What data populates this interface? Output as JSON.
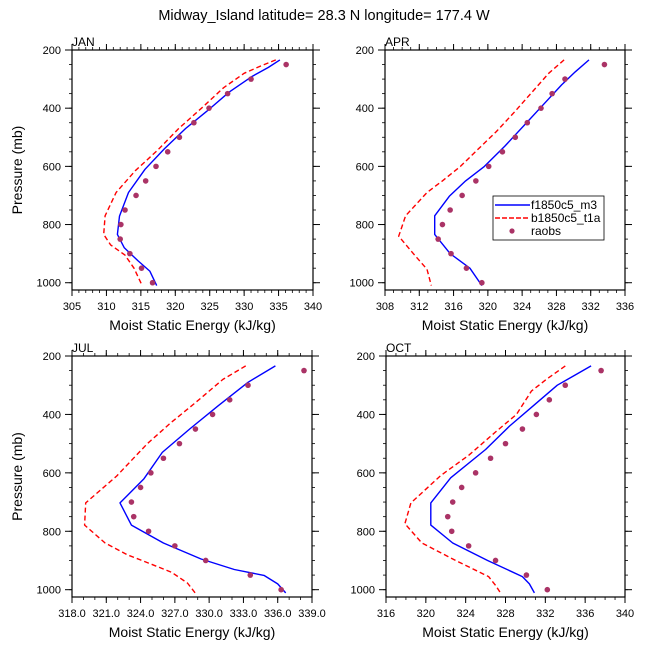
{
  "title": "Midway_Island  latitude= 28.3 N longitude= 177.4 W",
  "chart_data": [
    {
      "type": "line",
      "panel": "JAN",
      "xlabel": "Moist Static Energy (kJ/kg)",
      "ylabel": "Pressure (mb)",
      "xlim": [
        305,
        340
      ],
      "ylim": [
        200,
        1025
      ],
      "y_inverted": false,
      "xticks": [
        305,
        310,
        315,
        320,
        325,
        330,
        335,
        340
      ],
      "xtick_labels": [
        "305",
        "310",
        "315",
        "320",
        "325",
        "330",
        "335",
        "340"
      ],
      "x_minor_step": 1,
      "yticks": [
        200,
        400,
        600,
        800,
        1000
      ],
      "ytick_labels": [
        "200",
        "400",
        "600",
        "800",
        "1000"
      ],
      "y_minor_step": 50,
      "show_xlabel": true,
      "show_ylabel": true,
      "legend": false,
      "series": [
        {
          "name": "f1850c5_m3",
          "style": "solid",
          "color": "#0000ff",
          "x": [
            335.2,
            333.5,
            331.2,
            327.8,
            324.6,
            321.5,
            318.4,
            315.6,
            313.2,
            311.9,
            311.6,
            312.6,
            314.6,
            316.3,
            317.3
          ],
          "y": [
            234,
            260,
            290,
            345,
            410,
            470,
            540,
            610,
            690,
            771,
            834,
            880,
            925,
            960,
            1010
          ]
        },
        {
          "name": "b1850c5_t1a",
          "style": "dashed",
          "color": "#ff0000",
          "x": [
            334.6,
            332.4,
            330.0,
            327.0,
            323.8,
            320.5,
            317.4,
            314.2,
            311.4,
            309.8,
            309.6,
            310.6,
            312.7,
            314.0,
            315.1
          ],
          "y": [
            234,
            255,
            280,
            330,
            400,
            470,
            545,
            615,
            690,
            770,
            834,
            870,
            905,
            950,
            1005
          ]
        },
        {
          "name": "raobs",
          "style": "markers",
          "color": "#aa3366",
          "x": [
            336.1,
            331.0,
            327.6,
            324.9,
            322.7,
            320.6,
            318.9,
            317.2,
            315.7,
            314.3,
            312.7,
            312.1,
            312.0,
            313.4,
            315.1,
            316.7
          ],
          "y": [
            250,
            300,
            350,
            400,
            450,
            500,
            550,
            600,
            650,
            700,
            750,
            800,
            850,
            900,
            950,
            1000
          ]
        }
      ]
    },
    {
      "type": "line",
      "panel": "APR",
      "xlabel": "Moist Static Energy (kJ/kg)",
      "ylabel": "",
      "xlim": [
        308,
        336
      ],
      "ylim": [
        200,
        1025
      ],
      "xticks": [
        308,
        312,
        316,
        320,
        324,
        328,
        332,
        336
      ],
      "xtick_labels": [
        "308",
        "312",
        "316",
        "320",
        "324",
        "328",
        "332",
        "336"
      ],
      "x_minor_step": 1,
      "yticks": [
        200,
        400,
        600,
        800,
        1000
      ],
      "ytick_labels": [
        "200",
        "400",
        "600",
        "800",
        "1000"
      ],
      "y_minor_step": 50,
      "show_xlabel": true,
      "show_ylabel": false,
      "legend": true,
      "legend_position": "center-right",
      "series": [
        {
          "name": "f1850c5_m3",
          "style": "solid",
          "color": "#0000ff",
          "x": [
            331.8,
            330.2,
            328.6,
            326.4,
            324.2,
            322.0,
            319.6,
            317.4,
            315.5,
            313.8,
            313.8,
            315.6,
            317.9,
            319.3
          ],
          "y": [
            234,
            275,
            320,
            390,
            460,
            530,
            600,
            650,
            703,
            770,
            834,
            900,
            950,
            1010
          ]
        },
        {
          "name": "b1850c5_t1a",
          "style": "dashed",
          "color": "#ff0000",
          "x": [
            328.9,
            327.1,
            325.6,
            323.2,
            321.0,
            318.9,
            316.8,
            314.7,
            312.9,
            310.4,
            309.6,
            311.3,
            312.9,
            313.4
          ],
          "y": [
            234,
            280,
            330,
            410,
            480,
            540,
            600,
            650,
            690,
            770,
            840,
            900,
            954,
            1010
          ]
        },
        {
          "name": "raobs",
          "style": "markers",
          "color": "#aa3366",
          "x": [
            333.6,
            329.0,
            327.5,
            326.2,
            324.6,
            323.2,
            321.7,
            320.1,
            318.6,
            317.0,
            315.6,
            314.7,
            314.2,
            315.7,
            317.5,
            319.3
          ],
          "y": [
            250,
            300,
            350,
            400,
            450,
            500,
            550,
            600,
            650,
            700,
            750,
            800,
            850,
            900,
            950,
            1000
          ]
        }
      ]
    },
    {
      "type": "line",
      "panel": "JUL",
      "xlabel": "Moist Static Energy (kJ/kg)",
      "ylabel": "Pressure (mb)",
      "xlim": [
        318,
        339
      ],
      "ylim": [
        200,
        1025
      ],
      "xticks": [
        318,
        321,
        324,
        327,
        330,
        333,
        336,
        339
      ],
      "xtick_labels": [
        "318.0",
        "321.0",
        "324.0",
        "327.0",
        "330.0",
        "333.0",
        "336.0",
        "339.0"
      ],
      "x_minor_step": 1,
      "yticks": [
        200,
        400,
        600,
        800,
        1000
      ],
      "ytick_labels": [
        "200",
        "400",
        "600",
        "800",
        "1000"
      ],
      "y_minor_step": 50,
      "show_xlabel": true,
      "show_ylabel": true,
      "legend": false,
      "series": [
        {
          "name": "f1850c5_m3",
          "style": "solid",
          "color": "#0000ff",
          "x": [
            335.8,
            333.4,
            330.8,
            328.3,
            325.9,
            324.3,
            322.2,
            323.2,
            326.0,
            329.3,
            332.2,
            334.8,
            336.0,
            336.7
          ],
          "y": [
            234,
            290,
            370,
            450,
            530,
            620,
            703,
            779,
            840,
            895,
            931,
            951,
            980,
            1011
          ]
        },
        {
          "name": "b1850c5_t1a",
          "style": "dashed",
          "color": "#ff0000",
          "x": [
            333.2,
            331.2,
            328.8,
            326.6,
            324.6,
            321.9,
            319.2,
            319.1,
            320.9,
            322.8,
            324.7,
            326.7,
            328.1,
            328.9
          ],
          "y": [
            234,
            280,
            360,
            430,
            500,
            611,
            703,
            779,
            840,
            880,
            909,
            940,
            977,
            1017
          ]
        },
        {
          "name": "raobs",
          "style": "markers",
          "color": "#aa3366",
          "x": [
            338.3,
            333.4,
            331.8,
            330.3,
            328.8,
            327.4,
            326.0,
            324.9,
            324.0,
            323.2,
            323.4,
            324.7,
            327.0,
            329.7,
            333.6,
            336.3
          ],
          "y": [
            250,
            300,
            350,
            400,
            450,
            500,
            550,
            600,
            650,
            700,
            750,
            800,
            850,
            900,
            950,
            1000
          ]
        }
      ]
    },
    {
      "type": "line",
      "panel": "OCT",
      "xlabel": "Moist Static Energy (kJ/kg)",
      "ylabel": "",
      "xlim": [
        316,
        340
      ],
      "ylim": [
        200,
        1025
      ],
      "xticks": [
        316,
        320,
        324,
        328,
        332,
        336,
        340
      ],
      "xtick_labels": [
        "316",
        "320",
        "324",
        "328",
        "332",
        "336",
        "340"
      ],
      "x_minor_step": 1,
      "yticks": [
        200,
        400,
        600,
        800,
        1000
      ],
      "ytick_labels": [
        "200",
        "400",
        "600",
        "800",
        "1000"
      ],
      "y_minor_step": 50,
      "show_xlabel": true,
      "show_ylabel": false,
      "legend": false,
      "series": [
        {
          "name": "f1850c5_m3",
          "style": "solid",
          "color": "#0000ff",
          "x": [
            336.6,
            335.0,
            333.2,
            330.8,
            328.4,
            326.0,
            322.5,
            320.5,
            320.5,
            322.7,
            326.2,
            329.7,
            330.4,
            330.9
          ],
          "y": [
            234,
            265,
            300,
            370,
            440,
            520,
            617,
            703,
            779,
            840,
            900,
            955,
            980,
            1011
          ]
        },
        {
          "name": "b1850c5_t1a",
          "style": "dashed",
          "color": "#ff0000",
          "x": [
            334.0,
            332.1,
            330.6,
            329.1,
            327.0,
            324.3,
            321.5,
            318.5,
            317.9,
            319.6,
            323.0,
            326.3,
            327.0,
            327.5
          ],
          "y": [
            234,
            280,
            320,
            400,
            460,
            540,
            609,
            703,
            774,
            840,
            900,
            955,
            985,
            1011
          ]
        },
        {
          "name": "raobs",
          "style": "markers",
          "color": "#aa3366",
          "x": [
            337.6,
            334.0,
            332.4,
            331.1,
            329.7,
            328.0,
            326.5,
            325.0,
            323.6,
            322.7,
            322.2,
            322.6,
            324.3,
            327.0,
            330.1,
            332.2
          ],
          "y": [
            250,
            300,
            350,
            400,
            450,
            500,
            550,
            600,
            650,
            700,
            750,
            800,
            850,
            900,
            950,
            1000
          ]
        }
      ]
    }
  ],
  "legend": {
    "entries": [
      {
        "label": "f1850c5_m3",
        "style": "solid",
        "color": "#0000ff"
      },
      {
        "label": "b1850c5_t1a",
        "style": "dashed",
        "color": "#ff0000"
      },
      {
        "label": "raobs",
        "style": "markers",
        "color": "#aa3366"
      }
    ]
  }
}
